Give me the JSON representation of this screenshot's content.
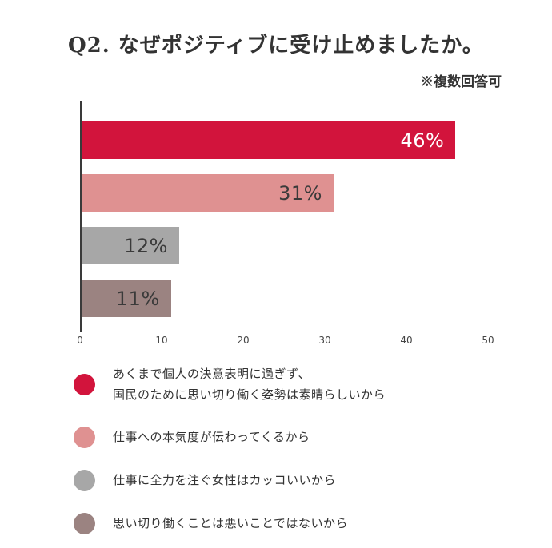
{
  "title": "Q2. なぜポジティブに受け止めましたか。",
  "note": "※複数回答可",
  "chart_data": {
    "type": "bar",
    "orientation": "horizontal",
    "title": "Q2. なぜポジティブに受け止めましたか。",
    "subtitle": "※複数回答可",
    "categories": [
      "あくまで個人の決意表明に過ぎず、国民のために思い切り働く姿勢は素晴らしいから",
      "仕事への本気度が伝わってくるから",
      "仕事に全力を注ぐ女性はカッコいいから",
      "思い切り働くことは悪いことではないから"
    ],
    "values": [
      46,
      31,
      12,
      11
    ],
    "value_labels": [
      "46%",
      "31%",
      "12%",
      "11%"
    ],
    "colors": [
      "#d2143c",
      "#df9191",
      "#a7a7a7",
      "#9b8381"
    ],
    "value_label_colors": [
      "#ffffff",
      "#3a3a3a",
      "#3a3a3a",
      "#3a3a3a"
    ],
    "xlim": [
      0,
      50
    ],
    "x_ticks": [
      0,
      10,
      20,
      30,
      40,
      50
    ],
    "grid": false,
    "axis_color": "#3a3a3a",
    "legend_position": "bottom"
  },
  "legend": {
    "items": [
      {
        "color": "#d2143c",
        "lines": [
          "あくまで個人の決意表明に過ぎず、",
          "国民のために思い切り働く姿勢は素晴らしいから"
        ]
      },
      {
        "color": "#df9191",
        "lines": [
          "仕事への本気度が伝わってくるから"
        ]
      },
      {
        "color": "#a7a7a7",
        "lines": [
          "仕事に全力を注ぐ女性はカッコいいから"
        ]
      },
      {
        "color": "#9b8381",
        "lines": [
          "思い切り働くことは悪いことではないから"
        ]
      }
    ]
  }
}
